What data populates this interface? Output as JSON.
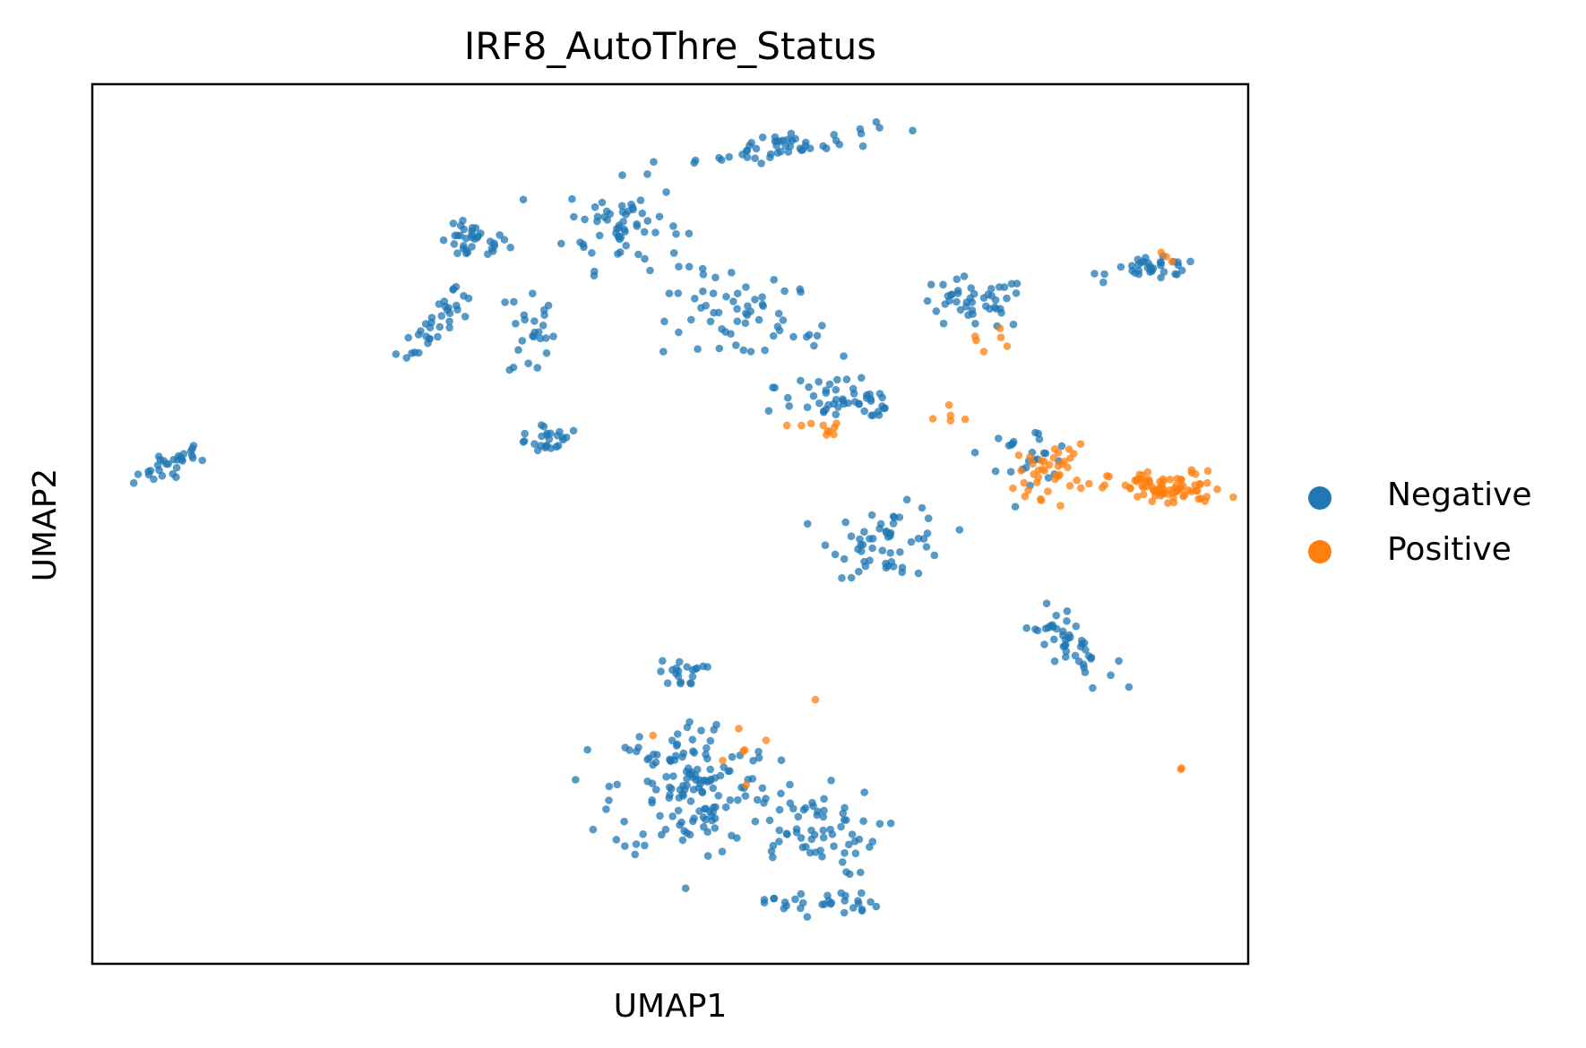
{
  "chart_data": {
    "type": "scatter",
    "title": "IRF8_AutoThre_Status",
    "xlabel": "UMAP1",
    "ylabel": "UMAP2",
    "xlim": [
      0,
      100
    ],
    "ylim": [
      0,
      100
    ],
    "ticks": "none",
    "grid": false,
    "legend_position": "right",
    "series": [
      {
        "name": "Negative",
        "color": "#1f77b4",
        "clusters": [
          {
            "cx": 7,
            "cy": 57,
            "rx": 4,
            "ry": 1.2,
            "angle": 30,
            "n": 30
          },
          {
            "cx": 30,
            "cy": 73,
            "rx": 5,
            "ry": 1.5,
            "angle": 55,
            "n": 35
          },
          {
            "cx": 33,
            "cy": 82,
            "rx": 3,
            "ry": 2,
            "angle": 0,
            "n": 35
          },
          {
            "cx": 38,
            "cy": 72,
            "rx": 2,
            "ry": 6,
            "angle": 0,
            "n": 25
          },
          {
            "cx": 39,
            "cy": 60,
            "rx": 3,
            "ry": 2,
            "angle": -20,
            "n": 25
          },
          {
            "cx": 46,
            "cy": 84,
            "rx": 5,
            "ry": 5,
            "angle": 0,
            "n": 60
          },
          {
            "cx": 60,
            "cy": 93,
            "rx": 8,
            "ry": 1.5,
            "angle": 10,
            "n": 50
          },
          {
            "cx": 56,
            "cy": 74,
            "rx": 8,
            "ry": 4,
            "angle": -25,
            "n": 60
          },
          {
            "cx": 65,
            "cy": 64,
            "rx": 6,
            "ry": 3,
            "angle": -15,
            "n": 50
          },
          {
            "cx": 76,
            "cy": 75,
            "rx": 5,
            "ry": 3,
            "angle": 0,
            "n": 45
          },
          {
            "cx": 92,
            "cy": 79,
            "rx": 4,
            "ry": 1.2,
            "angle": 0,
            "n": 35
          },
          {
            "cx": 69,
            "cy": 48,
            "rx": 5,
            "ry": 4,
            "angle": 0,
            "n": 55
          },
          {
            "cx": 81,
            "cy": 58,
            "rx": 4,
            "ry": 3,
            "angle": 0,
            "n": 25
          },
          {
            "cx": 84,
            "cy": 37,
            "rx": 5,
            "ry": 2,
            "angle": -50,
            "n": 45
          },
          {
            "cx": 52,
            "cy": 20,
            "rx": 7,
            "ry": 8,
            "angle": 0,
            "n": 150
          },
          {
            "cx": 62,
            "cy": 15,
            "rx": 6,
            "ry": 5,
            "angle": 0,
            "n": 60
          },
          {
            "cx": 51,
            "cy": 33,
            "rx": 2,
            "ry": 1.5,
            "angle": 0,
            "n": 20
          },
          {
            "cx": 63,
            "cy": 7,
            "rx": 5,
            "ry": 1.5,
            "angle": 0,
            "n": 30
          }
        ]
      },
      {
        "name": "Positive",
        "color": "#ff7f0e",
        "clusters": [
          {
            "cx": 93,
            "cy": 54,
            "rx": 5,
            "ry": 2,
            "angle": 0,
            "n": 80
          },
          {
            "cx": 83,
            "cy": 56,
            "rx": 3,
            "ry": 3,
            "angle": 0,
            "n": 40
          },
          {
            "cx": 63,
            "cy": 61,
            "rx": 3,
            "ry": 1,
            "angle": 0,
            "n": 10
          },
          {
            "cx": 77,
            "cy": 71,
            "rx": 2,
            "ry": 1.5,
            "angle": 0,
            "n": 6
          },
          {
            "cx": 93,
            "cy": 80,
            "rx": 1.5,
            "ry": 0.8,
            "angle": 0,
            "n": 3
          },
          {
            "cx": 56,
            "cy": 24,
            "rx": 5,
            "ry": 10,
            "angle": 0,
            "n": 8
          },
          {
            "cx": 74,
            "cy": 62,
            "rx": 2,
            "ry": 2,
            "angle": 0,
            "n": 5
          },
          {
            "cx": 94,
            "cy": 22,
            "rx": 0.8,
            "ry": 0.5,
            "angle": 0,
            "n": 2
          }
        ]
      }
    ]
  }
}
